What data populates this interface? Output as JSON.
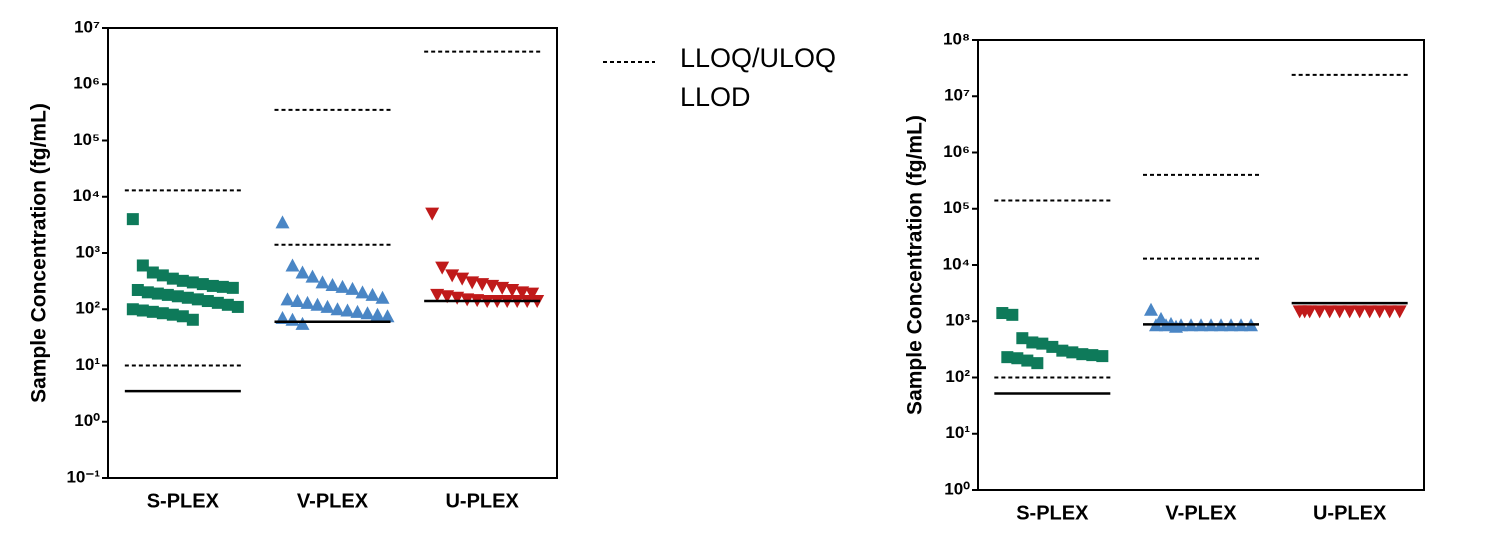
{
  "chart_data": [
    {
      "type": "scatter",
      "ylabel": "Sample Concentration (fg/mL)",
      "log_y": true,
      "ylim": [
        0.1,
        10000000
      ],
      "yticks": [
        {
          "value": 0.1,
          "label": "10⁻¹"
        },
        {
          "value": 1,
          "label": "10⁰"
        },
        {
          "value": 10,
          "label": "10¹"
        },
        {
          "value": 100,
          "label": "10²"
        },
        {
          "value": 1000,
          "label": "10³"
        },
        {
          "value": 10000,
          "label": "10⁴"
        },
        {
          "value": 100000,
          "label": "10⁵"
        },
        {
          "value": 1000000,
          "label": "10⁶"
        },
        {
          "value": 10000000,
          "label": "10⁷"
        }
      ],
      "categories": [
        "S-PLEX",
        "V-PLEX",
        "U-PLEX"
      ],
      "groups": [
        {
          "color": "#0e7a5a",
          "marker": "square",
          "lloq": 10,
          "uloq": 13000,
          "llod": 3.5,
          "values": [
            4000,
            600,
            450,
            400,
            350,
            320,
            300,
            280,
            260,
            250,
            240,
            220,
            200,
            190,
            180,
            170,
            160,
            150,
            140,
            130,
            120,
            110,
            100,
            95,
            90,
            85,
            80,
            75,
            65
          ]
        },
        {
          "color": "#4a86c5",
          "marker": "triangle-up",
          "lloq": 1400,
          "uloq": 350000,
          "llod": 60,
          "values": [
            3500,
            600,
            450,
            380,
            300,
            270,
            250,
            230,
            200,
            180,
            160,
            150,
            140,
            130,
            120,
            110,
            100,
            95,
            90,
            85,
            80,
            75,
            70,
            65,
            55
          ]
        },
        {
          "color": "#c01a1a",
          "marker": "triangle-down",
          "uloq": 3800000,
          "llod": 140,
          "values": [
            5000,
            550,
            400,
            350,
            300,
            280,
            260,
            240,
            220,
            200,
            190,
            180,
            170,
            160,
            150,
            145,
            140,
            140,
            140,
            140,
            140,
            140
          ]
        }
      ],
      "legend": {
        "lloq_uloq": "LLOQ/ULOQ",
        "llod": "LLOD"
      }
    },
    {
      "type": "scatter",
      "ylabel": "Sample Concentration (fg/mL)",
      "log_y": true,
      "ylim": [
        1,
        100000000
      ],
      "yticks": [
        {
          "value": 1,
          "label": "10⁰"
        },
        {
          "value": 10,
          "label": "10¹"
        },
        {
          "value": 100,
          "label": "10²"
        },
        {
          "value": 1000,
          "label": "10³"
        },
        {
          "value": 10000,
          "label": "10⁴"
        },
        {
          "value": 100000,
          "label": "10⁵"
        },
        {
          "value": 1000000,
          "label": "10⁶"
        },
        {
          "value": 10000000,
          "label": "10⁷"
        },
        {
          "value": 100000000,
          "label": "10⁸"
        }
      ],
      "categories": [
        "S-PLEX",
        "V-PLEX",
        "U-PLEX"
      ],
      "groups": [
        {
          "color": "#0e7a5a",
          "marker": "square",
          "lloq": 100,
          "uloq": 140000,
          "llod": 52,
          "values": [
            1400,
            1300,
            500,
            420,
            400,
            350,
            300,
            280,
            260,
            250,
            240,
            230,
            220,
            200,
            180
          ]
        },
        {
          "color": "#4a86c5",
          "marker": "triangle-up",
          "lloq": 13000,
          "uloq": 400000,
          "llod": 880,
          "values": [
            1600,
            1100,
            900,
            850,
            850,
            850,
            850,
            850,
            850,
            850,
            850,
            850,
            850,
            800
          ]
        },
        {
          "color": "#c01a1a",
          "marker": "triangle-down",
          "uloq": 24000000,
          "llod": 2100,
          "values": [
            1500,
            1500,
            1500,
            1500,
            1500,
            1500,
            1500,
            1500,
            1500,
            1500,
            1500,
            1500
          ]
        }
      ]
    }
  ]
}
